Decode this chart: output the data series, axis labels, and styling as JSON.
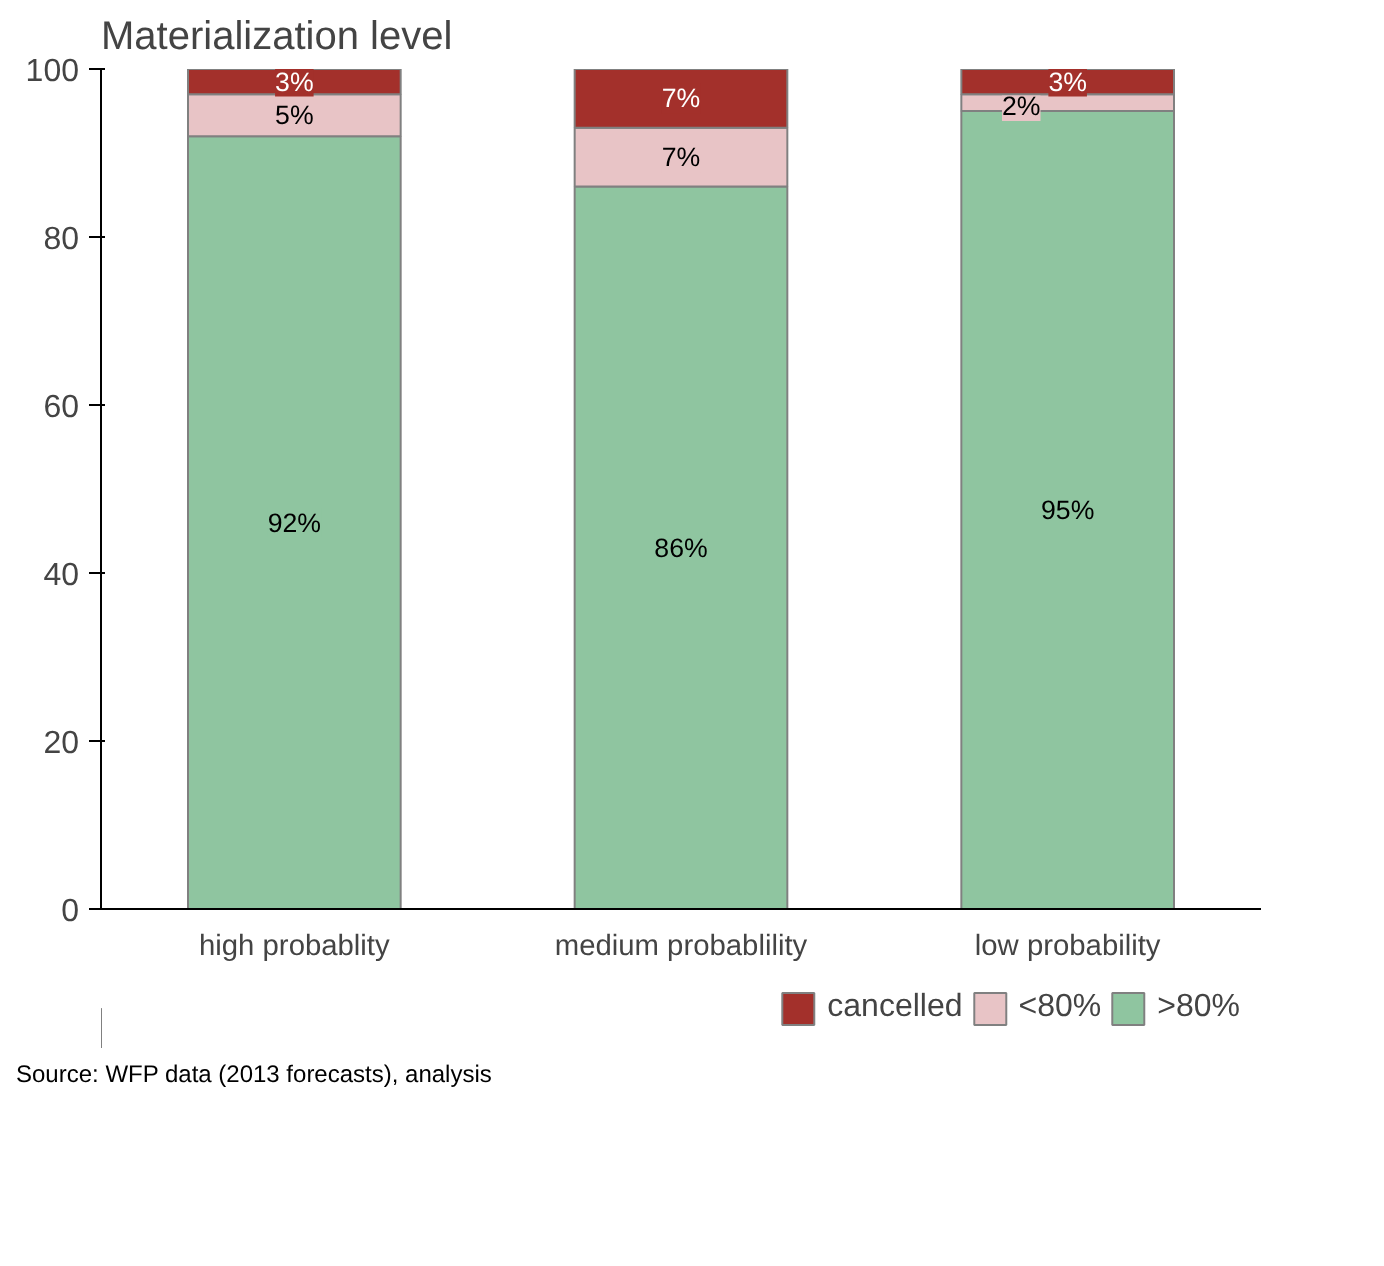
{
  "chart_data": {
    "type": "bar",
    "title": "Materialization level",
    "stacked": true,
    "categories": [
      "high probablity",
      "medium probablility",
      "low probability"
    ],
    "series": [
      {
        "name": ">80%",
        "color": "#8fc5a0",
        "values": [
          92,
          86,
          95
        ],
        "value_labels": [
          "92%",
          "86%",
          "95%"
        ]
      },
      {
        "name": "<80%",
        "color": "#e8c4c6",
        "values": [
          5,
          7,
          2
        ],
        "value_labels": [
          "5%",
          "7%",
          "2%"
        ]
      },
      {
        "name": "cancelled",
        "color": "#a3302b",
        "values": [
          3,
          7,
          3
        ],
        "value_labels": [
          "3%",
          "7%",
          "3%"
        ]
      }
    ],
    "ylim": [
      0,
      100
    ],
    "yticks": [
      0,
      20,
      40,
      60,
      80,
      100
    ],
    "grid": false,
    "legend": "bottom right",
    "annotations": [
      "Source: WFP data (2013 forecasts), analysis"
    ]
  }
}
